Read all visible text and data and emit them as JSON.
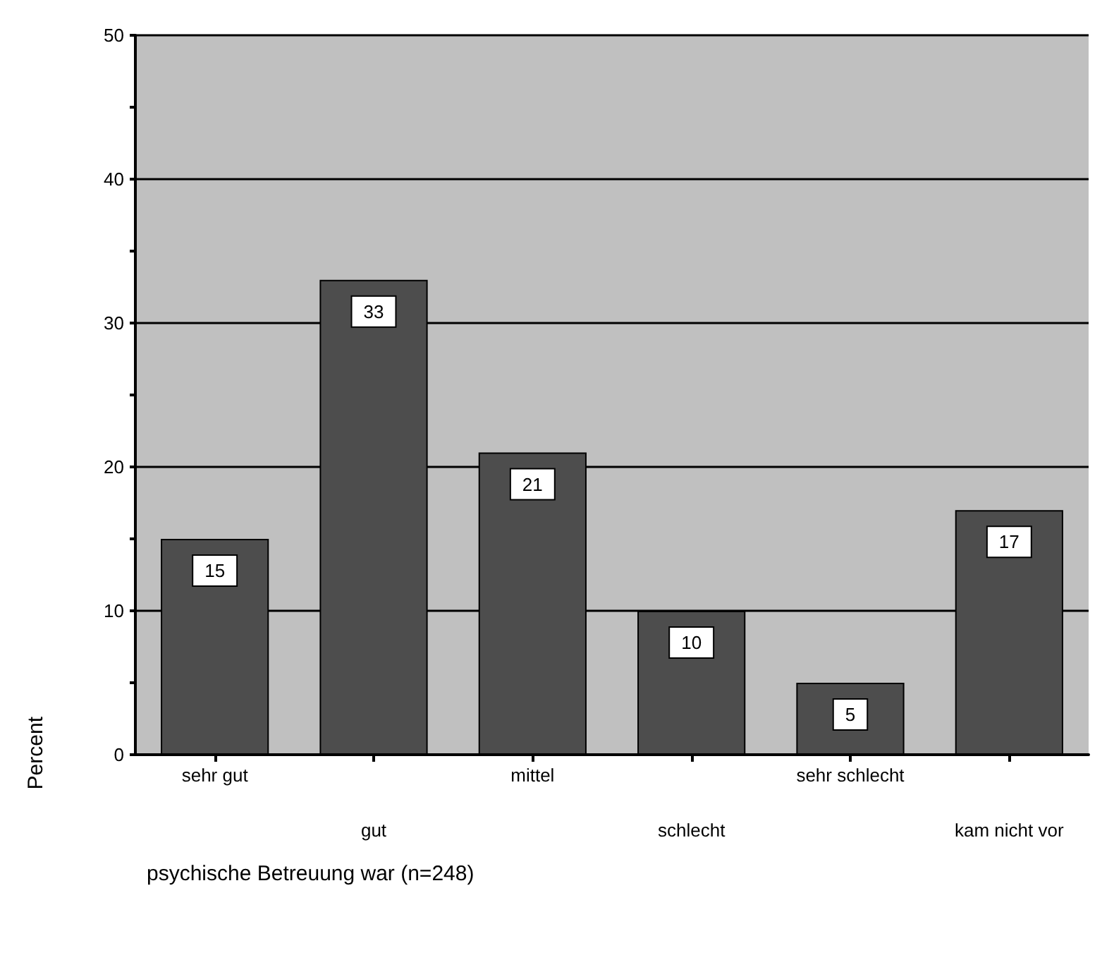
{
  "chart_data": {
    "type": "bar",
    "xlabel": "psychische Betreuung war (n=248)",
    "ylabel": "Percent",
    "categories": [
      "sehr gut",
      "gut",
      "mittel",
      "schlecht",
      "sehr schlecht",
      "kam nicht vor"
    ],
    "values": [
      15,
      33,
      21,
      10,
      5,
      17
    ],
    "color": "#4d4d4d",
    "ylim": [
      0,
      50
    ],
    "yticks": [
      0,
      {
        "value": 5,
        "label": null
      },
      10,
      {
        "value": 15,
        "label": null
      },
      20,
      {
        "value": 25,
        "label": null
      },
      30,
      {
        "value": 35,
        "label": null
      },
      40,
      {
        "value": 45,
        "label": null
      },
      50
    ],
    "grid": "y",
    "data_labels": true
  }
}
